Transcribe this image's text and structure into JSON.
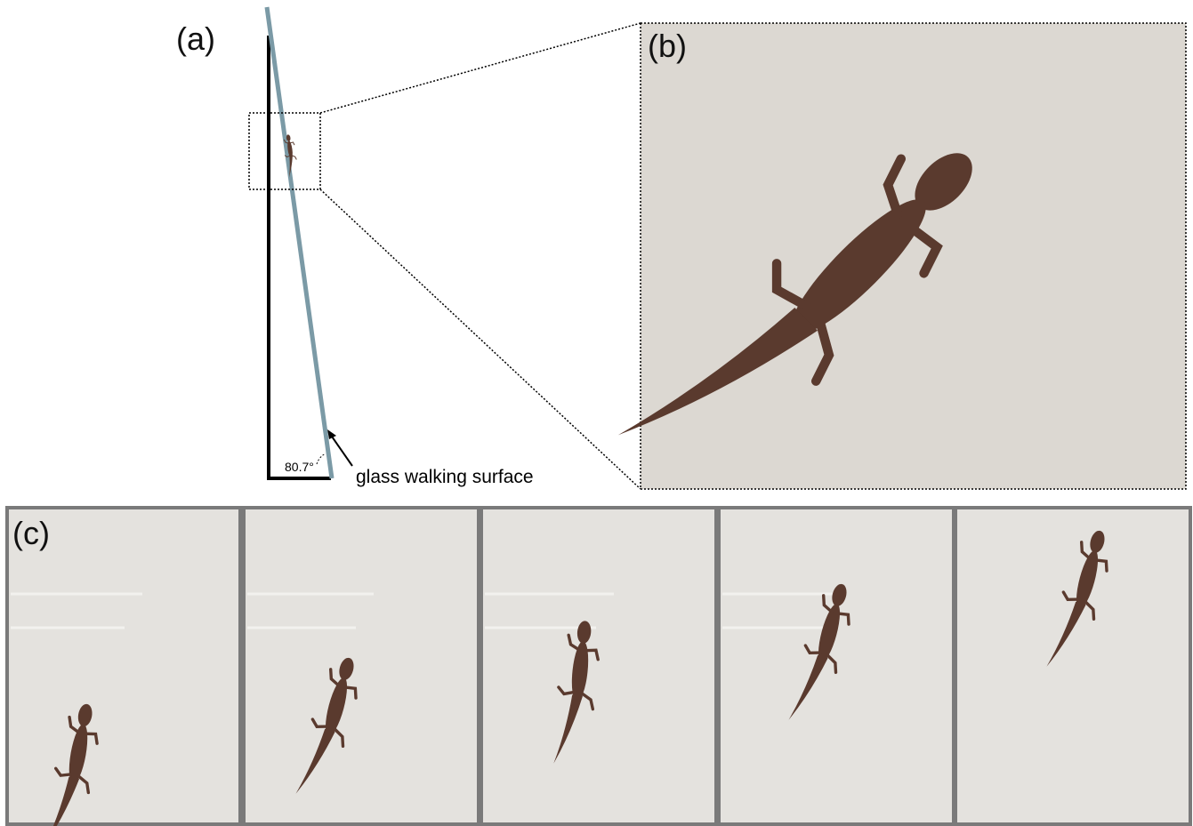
{
  "panels": {
    "a": {
      "label": "(a)",
      "angle": "80.7°",
      "annotation": "glass walking surface"
    },
    "b": {
      "label": "(b)"
    },
    "c": {
      "label": "(c)"
    }
  }
}
